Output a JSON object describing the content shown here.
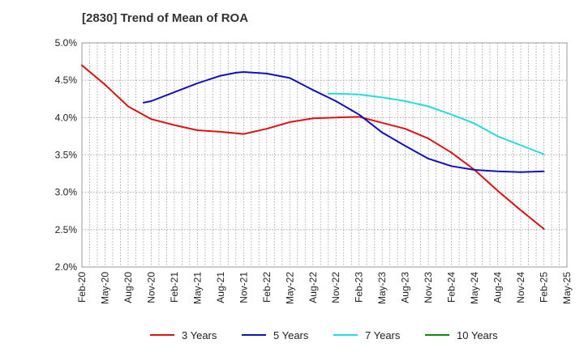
{
  "chart_data": {
    "type": "line",
    "title": "[2830]  Trend of Mean of ROA",
    "xlabel": "",
    "ylabel": "",
    "ylim": [
      2.0,
      5.0
    ],
    "yticks": [
      2.0,
      2.5,
      3.0,
      3.5,
      4.0,
      4.5,
      5.0
    ],
    "ytick_labels": [
      "2.0%",
      "2.5%",
      "3.0%",
      "3.5%",
      "4.0%",
      "4.5%",
      "5.0%"
    ],
    "x_ticks": [
      "Feb-20",
      "May-20",
      "Aug-20",
      "Nov-20",
      "Feb-21",
      "May-21",
      "Aug-21",
      "Nov-21",
      "Feb-22",
      "May-22",
      "Aug-22",
      "Nov-22",
      "Feb-23",
      "May-23",
      "Aug-23",
      "Nov-23",
      "Feb-24",
      "May-24",
      "Aug-24",
      "Nov-24",
      "Feb-25",
      "May-25"
    ],
    "x_range": [
      0,
      63
    ],
    "grid": true,
    "legend_position": "bottom",
    "series": [
      {
        "name": "3 Years",
        "color": "#dd1111",
        "x": [
          0,
          3,
          6,
          9,
          12,
          15,
          18,
          21,
          24,
          27,
          30,
          33,
          36,
          39,
          42,
          45,
          48,
          51,
          54,
          57,
          60
        ],
        "values": [
          4.7,
          4.44,
          4.15,
          3.98,
          3.9,
          3.83,
          3.81,
          3.78,
          3.85,
          3.94,
          3.99,
          4.0,
          4.01,
          3.93,
          3.85,
          3.72,
          3.53,
          3.3,
          3.02,
          2.76,
          2.51
        ]
      },
      {
        "name": "5 Years",
        "color": "#1111bb",
        "x": [
          8,
          9,
          12,
          15,
          18,
          20,
          21,
          24,
          27,
          30,
          33,
          36,
          39,
          42,
          45,
          48,
          51,
          54,
          57,
          60
        ],
        "values": [
          4.2,
          4.22,
          4.34,
          4.46,
          4.56,
          4.6,
          4.61,
          4.59,
          4.53,
          4.37,
          4.22,
          4.04,
          3.8,
          3.62,
          3.45,
          3.35,
          3.3,
          3.28,
          3.27,
          3.28
        ]
      },
      {
        "name": "7 Years",
        "color": "#22dddd",
        "x": [
          32,
          33,
          36,
          39,
          42,
          45,
          48,
          51,
          54,
          57,
          60
        ],
        "values": [
          4.32,
          4.32,
          4.31,
          4.27,
          4.22,
          4.15,
          4.04,
          3.92,
          3.75,
          3.63,
          3.51
        ]
      },
      {
        "name": "10 Years",
        "color": "#118811",
        "x": [],
        "values": []
      }
    ]
  }
}
